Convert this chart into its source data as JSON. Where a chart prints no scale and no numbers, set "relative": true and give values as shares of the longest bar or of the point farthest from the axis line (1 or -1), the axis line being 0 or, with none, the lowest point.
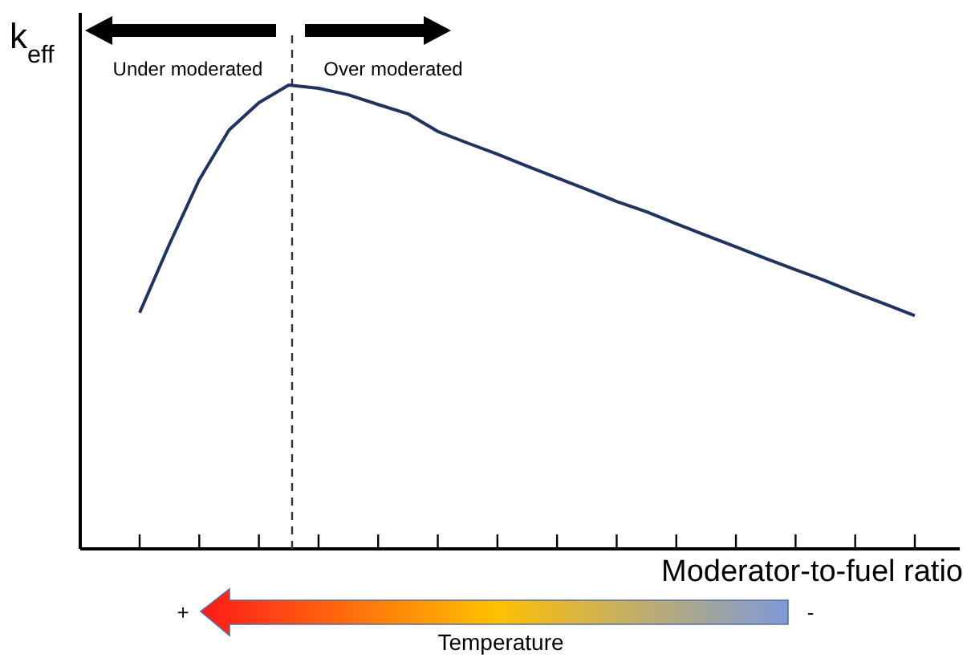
{
  "chart_data": {
    "type": "line",
    "relative": true,
    "xlabel": "Moderator-to-fuel ratio",
    "ylabel": "k$_{eff}$",
    "categories": [
      null,
      null,
      null,
      null,
      null,
      null,
      null,
      null,
      null,
      null,
      null,
      null,
      null,
      null,
      null,
      null,
      null,
      null,
      null,
      null,
      null,
      null,
      null,
      null,
      null,
      null,
      null
    ],
    "series": [
      {
        "color": "#1f3461",
        "values": [
          0.509,
          0.657,
          0.796,
          0.903,
          0.962,
          1,
          0.993,
          0.979,
          0.958,
          0.938,
          0.9,
          0.875,
          0.851,
          0.825,
          0.8,
          0.775,
          0.749,
          0.727,
          0.701,
          0.676,
          0.651,
          0.626,
          0.602,
          0.578,
          0.552,
          0.528,
          0.503
        ]
      }
    ],
    "annotations": [
      "Under moderated",
      "Over moderated",
      "+",
      "-",
      "Temperature"
    ]
  }
}
